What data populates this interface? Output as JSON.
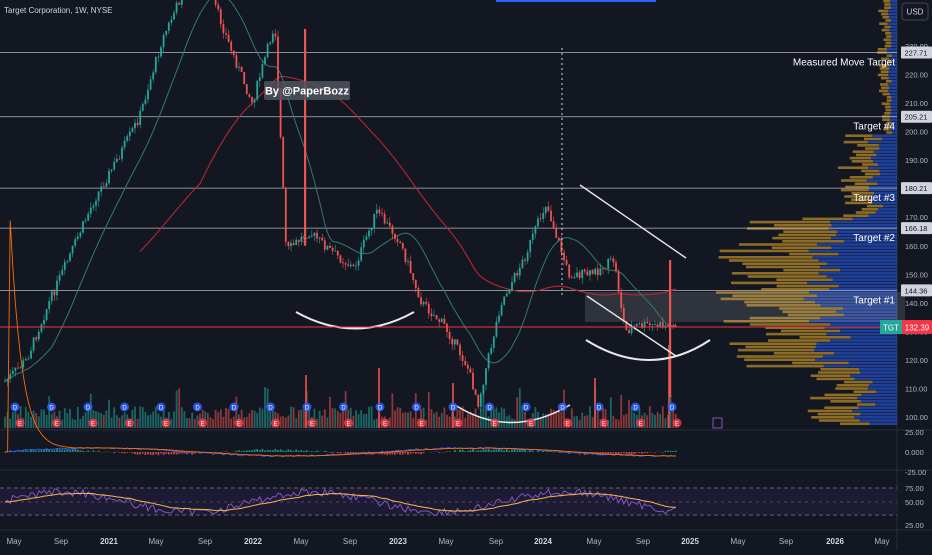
{
  "chart_title": "Target Corporation, 1W, NYSE",
  "currency_button": "USD",
  "watermark": "By @PaperBozz",
  "colors": {
    "background": "#131722",
    "up": "#26a69a",
    "down": "#ef5350",
    "ma_red": "#b22833",
    "ma_green": "#2e7d6a",
    "hline": "#d1d4dc",
    "price_line": "#f23645",
    "volume_profile_up": "#2962ff",
    "volume_profile_down": "#f0b229",
    "rsi_line": "#7e57c2",
    "rsi_ma": "#ffb74d",
    "macd_line": "#2962ff",
    "signal_line": "#ff6d00"
  },
  "chart_data": {
    "type": "candlestick",
    "title": "Target Corporation, 1W, NYSE",
    "symbol": "TGT",
    "last_price": "132.39",
    "y_axis": {
      "ticks": [
        "230.00",
        "220.00",
        "210.00",
        "200.00",
        "190.00",
        "180.00",
        "170.00",
        "160.00",
        "150.00",
        "140.00",
        "130.00",
        "120.00",
        "110.00",
        "100.00"
      ],
      "range": [
        98,
        236
      ]
    },
    "x_axis_labels": [
      "May",
      "Sep",
      "2021",
      "May",
      "Sep",
      "2022",
      "May",
      "Sep",
      "2023",
      "May",
      "Sep",
      "2024",
      "May",
      "Sep",
      "2025",
      "May",
      "Sep",
      "2026",
      "May"
    ],
    "horizontal_levels": [
      {
        "price": 227.71,
        "label": "227.71",
        "name": "Measured Move Target"
      },
      {
        "price": 205.21,
        "label": "205.21",
        "name": "Target #4"
      },
      {
        "price": 180.21,
        "label": "180.21",
        "name": "Target #3"
      },
      {
        "price": 166.18,
        "label": "166.18",
        "name": "Target #2"
      },
      {
        "price": 144.36,
        "label": "144.36",
        "name": "Target #1"
      }
    ],
    "price_path": [
      [
        "2020-04",
        112
      ],
      [
        "2020-06",
        120
      ],
      [
        "2020-08",
        140
      ],
      [
        "2020-10",
        158
      ],
      [
        "2020-12",
        176
      ],
      [
        "2021-02",
        190
      ],
      [
        "2021-04",
        205
      ],
      [
        "2021-06",
        232
      ],
      [
        "2021-08",
        250
      ],
      [
        "2021-10",
        252
      ],
      [
        "2021-12",
        230
      ],
      [
        "2022-02",
        210
      ],
      [
        "2022-04",
        238
      ],
      [
        "2022-05",
        158
      ],
      [
        "2022-07",
        165
      ],
      [
        "2022-09",
        158
      ],
      [
        "2022-11",
        152
      ],
      [
        "2023-01",
        172
      ],
      [
        "2023-03",
        162
      ],
      [
        "2023-05",
        140
      ],
      [
        "2023-07",
        132
      ],
      [
        "2023-09",
        118
      ],
      [
        "2023-10",
        105
      ],
      [
        "2023-12",
        140
      ],
      [
        "2024-02",
        155
      ],
      [
        "2024-04",
        175
      ],
      [
        "2024-06",
        150
      ],
      [
        "2024-08",
        150
      ],
      [
        "2024-10",
        155
      ],
      [
        "2024-11",
        130
      ],
      [
        "2024-12",
        132
      ]
    ],
    "pane_labels": {
      "macd": [
        "25.00",
        "0.000",
        "-25.00"
      ],
      "rsi": [
        "75.00",
        "50.00",
        "25.00"
      ]
    }
  }
}
